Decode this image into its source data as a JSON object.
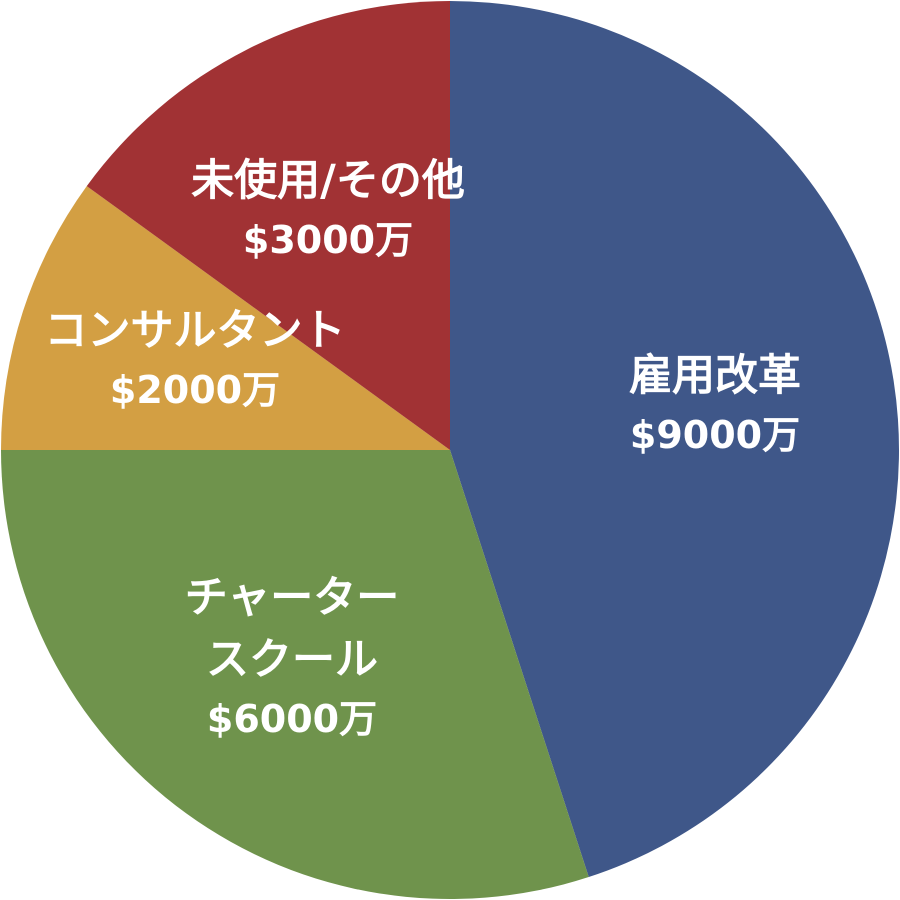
{
  "chart_data": {
    "type": "pie",
    "title": "",
    "start": "12 o'clock",
    "direction": "clockwise",
    "slices": [
      {
        "id": "hiring-reform",
        "label_lines": [
          "雇用改革"
        ],
        "value_label": "$9000万",
        "value": 9000,
        "color": "#3f5789"
      },
      {
        "id": "charter-school",
        "label_lines": [
          "チャーター",
          "スクール"
        ],
        "value_label": "$6000万",
        "value": 6000,
        "color": "#6f934c"
      },
      {
        "id": "consultant",
        "label_lines": [
          "コンサルタント"
        ],
        "value_label": "$2000万",
        "value": 2000,
        "color": "#d39f43"
      },
      {
        "id": "unused-other",
        "label_lines": [
          "未使用/その他"
        ],
        "value_label": "$3000万",
        "value": 3000,
        "color": "#a13234"
      }
    ],
    "unit": "万ドル"
  }
}
